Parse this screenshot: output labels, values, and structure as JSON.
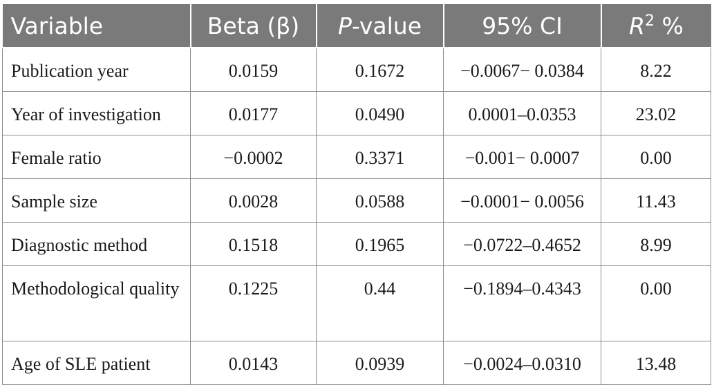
{
  "table": {
    "headers": {
      "variable": "Variable",
      "beta": "Beta (β)",
      "pvalue_p": "P",
      "pvalue_rest": "-value",
      "ci": "95% CI",
      "r2_r": "R",
      "r2_sup": "2",
      "r2_rest": " %"
    },
    "rows": [
      {
        "variable": "Publication year",
        "beta": "0.0159",
        "pvalue": "0.1672",
        "ci": "−0.0067− 0.0384",
        "r2": "8.22"
      },
      {
        "variable": "Year of investigation",
        "beta": "0.0177",
        "pvalue": "0.0490",
        "ci": "0.0001–0.0353",
        "r2": "23.02"
      },
      {
        "variable": "Female ratio",
        "beta": "−0.0002",
        "pvalue": "0.3371",
        "ci": "−0.001− 0.0007",
        "r2": "0.00"
      },
      {
        "variable": "Sample size",
        "beta": "0.0028",
        "pvalue": "0.0588",
        "ci": "−0.0001− 0.0056",
        "r2": "11.43"
      },
      {
        "variable": "Diagnostic method",
        "beta": "0.1518",
        "pvalue": "0.1965",
        "ci": "−0.0722–0.4652",
        "r2": "8.99"
      },
      {
        "variable": "Methodological quality",
        "beta": "0.1225",
        "pvalue": "0.44",
        "ci": "−0.1894–0.4343",
        "r2": "0.00"
      },
      {
        "variable": "Age of SLE patient",
        "beta": "0.0143",
        "pvalue": "0.0939",
        "ci": "−0.0024–0.0310",
        "r2": "13.48"
      }
    ]
  }
}
